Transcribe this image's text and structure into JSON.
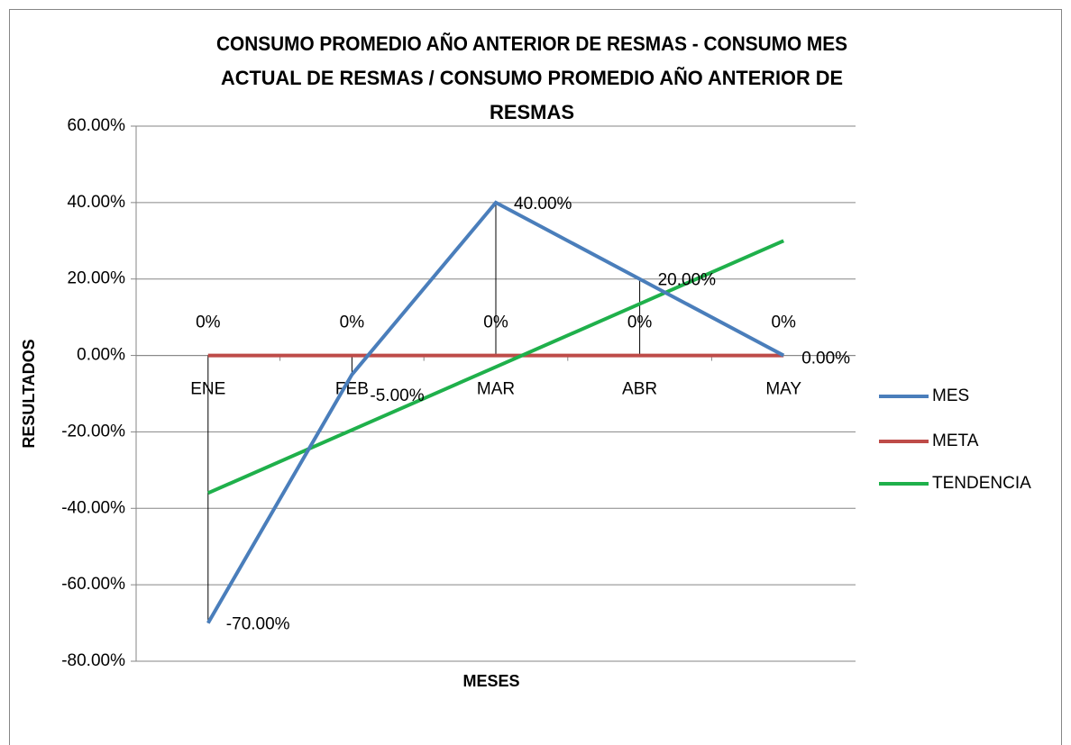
{
  "chart_data": {
    "type": "line",
    "title": [
      "CONSUMO PROMEDIO AÑO ANTERIOR DE RESMAS - CONSUMO MES",
      "ACTUAL DE RESMAS / CONSUMO PROMEDIO AÑO ANTERIOR DE",
      "RESMAS"
    ],
    "x_label": "MESES",
    "y_label": "RESULTADOS",
    "categories": [
      "ENE",
      "FEB",
      "MAR",
      "ABR",
      "MAY"
    ],
    "series": [
      {
        "name": "MES",
        "color": "#4a7ebb",
        "values": [
          -70,
          -5,
          40,
          20,
          0
        ],
        "value_labels": [
          "-70.00%",
          "-5.00%",
          "40.00%",
          "20.00%",
          "0.00%"
        ]
      },
      {
        "name": "META",
        "color": "#be4b48",
        "values": [
          0,
          0,
          0,
          0,
          0
        ],
        "value_labels": [
          "0%",
          "0%",
          "0%",
          "0%",
          "0%"
        ]
      },
      {
        "name": "TENDENCIA",
        "color": "#1fb04b",
        "values": [
          -36,
          -19.5,
          -3,
          13.5,
          30
        ]
      }
    ],
    "ylim": [
      -80,
      60
    ],
    "yticks": [
      {
        "value": -80,
        "label": "-80.00%"
      },
      {
        "value": -60,
        "label": "-60.00%"
      },
      {
        "value": -40,
        "label": "-40.00%"
      },
      {
        "value": -20,
        "label": "-20.00%"
      },
      {
        "value": 0,
        "label": "0.00%"
      },
      {
        "value": 20,
        "label": "20.00%"
      },
      {
        "value": 40,
        "label": "40.00%"
      },
      {
        "value": 60,
        "label": "60.00%"
      }
    ],
    "grid": true,
    "legend": "right"
  }
}
